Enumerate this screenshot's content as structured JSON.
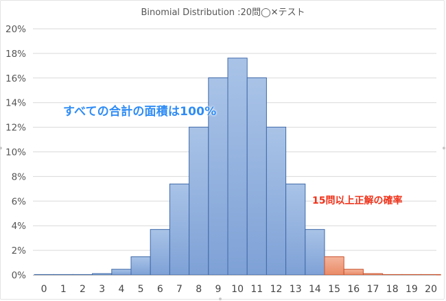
{
  "chart_data": {
    "type": "bar",
    "title": "Binomial Distribution :20問◯✕テスト",
    "categories": [
      "0",
      "1",
      "2",
      "3",
      "4",
      "5",
      "6",
      "7",
      "8",
      "9",
      "10",
      "11",
      "12",
      "13",
      "14",
      "15",
      "16",
      "17",
      "18",
      "19",
      "20"
    ],
    "values": [
      0.0001,
      0.0019,
      0.0181,
      0.1087,
      0.4621,
      1.4786,
      3.6964,
      7.3929,
      12.0134,
      16.0179,
      17.6197,
      16.0179,
      12.0134,
      7.3929,
      3.6964,
      1.4786,
      0.4621,
      0.1087,
      0.0181,
      0.0019,
      0.0001
    ],
    "highlight_from_index": 15,
    "y_ticks": [
      "0%",
      "2%",
      "4%",
      "6%",
      "8%",
      "10%",
      "12%",
      "14%",
      "16%",
      "18%",
      "20%"
    ],
    "ylim": [
      0,
      20
    ],
    "grid": true,
    "colors": {
      "bar_fill": "#92b2de",
      "bar_stroke": "#3f69a8",
      "highlight_fill": "#f0a68a",
      "highlight_stroke": "#c8512d",
      "gridline": "#d9d9d9",
      "axis": "#bfbfbf"
    },
    "annotations": {
      "total_area": "すべての合計の面積は100%",
      "highlight": "15問以上正解の確率"
    }
  }
}
